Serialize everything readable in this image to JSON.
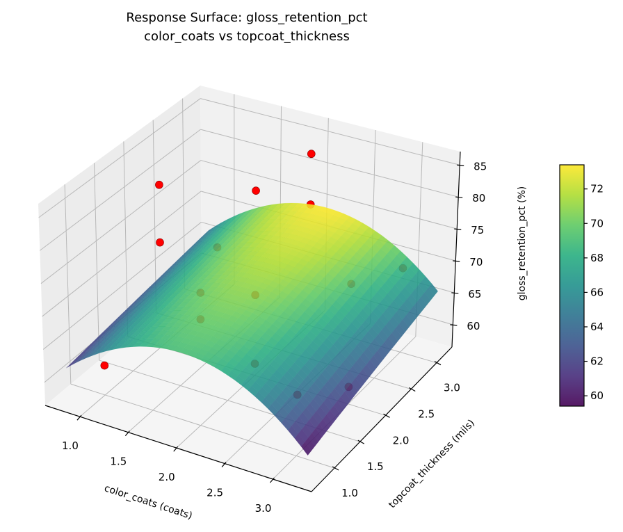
{
  "chart_data": {
    "type": "surface3d",
    "title": "Response Surface: gloss_retention_pct",
    "subtitle": "color_coats vs topcoat_thickness",
    "xlabel": "color_coats (coats)",
    "ylabel": "topcoat_thickness (mils)",
    "zlabel": "gloss_retention_pct (%)",
    "xlim": [
      0.64,
      3.4
    ],
    "ylim": [
      0.55,
      3.3
    ],
    "zlim": [
      56.5,
      87.1
    ],
    "xticks": [
      1.0,
      1.5,
      2.0,
      2.5,
      3.0
    ],
    "xtick_labels": [
      "1.0",
      "1.5",
      "2.0",
      "2.5",
      "3.0"
    ],
    "yticks": [
      1.0,
      1.5,
      2.0,
      2.5,
      3.0
    ],
    "ytick_labels": [
      "1.0",
      "1.5",
      "2.0",
      "2.5",
      "3.0"
    ],
    "zticks": [
      60,
      65,
      70,
      75,
      80,
      85
    ],
    "ztick_labels": [
      "60",
      "65",
      "70",
      "75",
      "80",
      "85"
    ],
    "grid": true,
    "surface": {
      "colormap": "viridis",
      "x": [
        0.75,
        1.375,
        2.0,
        2.625,
        3.25
      ],
      "y": [
        0.75,
        1.375,
        2.0,
        2.625,
        3.25
      ],
      "z": [
        [
          61.26,
          67.26,
          68.99,
          66.44,
          59.62
        ],
        [
          62.07,
          68.21,
          70.07,
          67.66,
          60.97
        ],
        [
          62.87,
          69.15,
          71.15,
          68.87,
          62.33
        ],
        [
          63.68,
          70.09,
          72.23,
          70.09,
          63.68
        ],
        [
          64.49,
          71.03,
          73.31,
          71.31,
          65.03
        ]
      ]
    },
    "points_color": "#ff0000",
    "points": [
      {
        "x": 1,
        "y": 1,
        "z": 61.0
      },
      {
        "x": 1,
        "y": 2,
        "z": 81.8
      },
      {
        "x": 1,
        "y": 2,
        "z": 72.8
      },
      {
        "x": 1,
        "y": 3,
        "z": 64.7
      },
      {
        "x": 2,
        "y": 1,
        "z": 76.5
      },
      {
        "x": 2,
        "y": 1,
        "z": 72.5
      },
      {
        "x": 2,
        "y": 2,
        "z": 85.0
      },
      {
        "x": 2,
        "y": 2,
        "z": 68.9
      },
      {
        "x": 2,
        "y": 2,
        "z": 58.3
      },
      {
        "x": 2,
        "y": 3,
        "z": 83.6
      },
      {
        "x": 2,
        "y": 3,
        "z": 75.6
      },
      {
        "x": 3,
        "y": 1,
        "z": 65.6
      },
      {
        "x": 3,
        "y": 2,
        "z": 74.8
      },
      {
        "x": 3,
        "y": 2,
        "z": 59.1
      },
      {
        "x": 3,
        "y": 3,
        "z": 69.6
      }
    ],
    "colorbar": {
      "range": [
        59.4,
        73.4
      ],
      "ticks": [
        60,
        62,
        64,
        66,
        68,
        70,
        72
      ],
      "tick_labels": [
        "60",
        "62",
        "64",
        "66",
        "68",
        "70",
        "72"
      ]
    }
  }
}
